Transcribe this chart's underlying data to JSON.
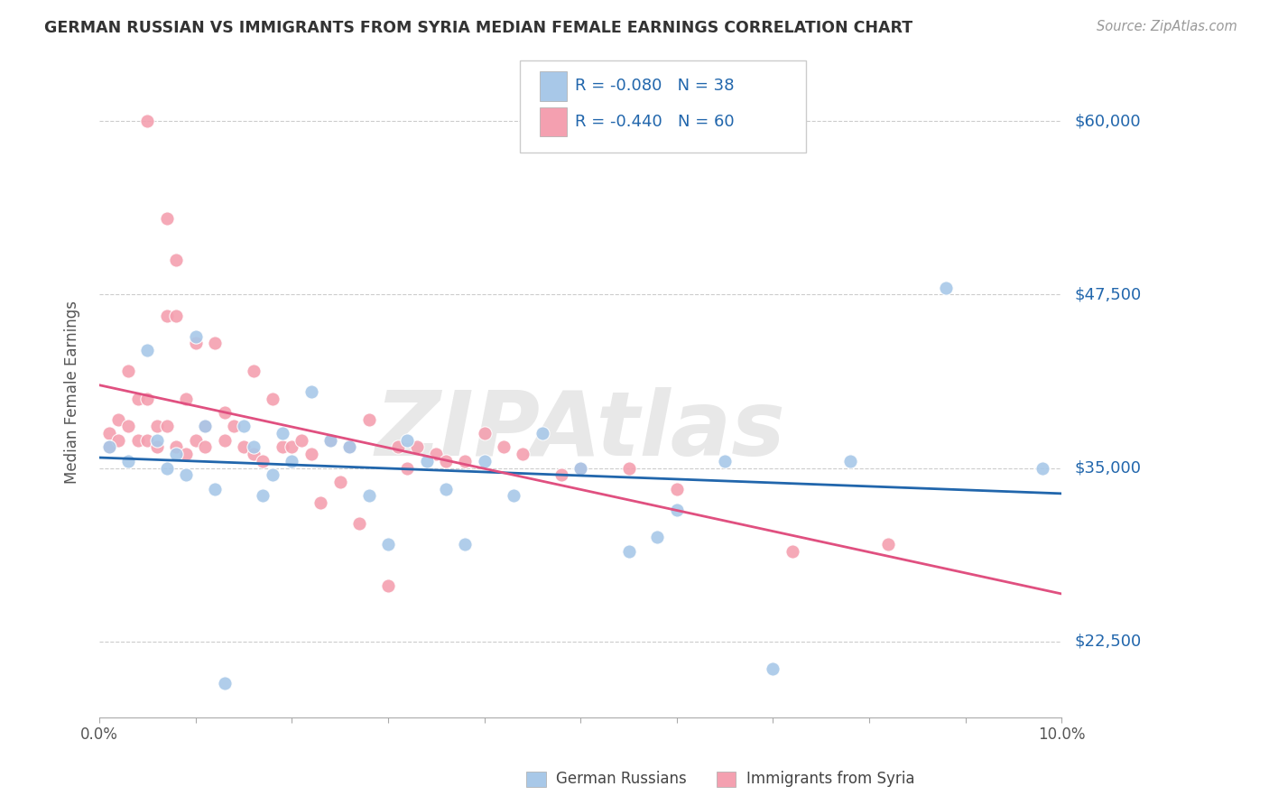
{
  "title": "GERMAN RUSSIAN VS IMMIGRANTS FROM SYRIA MEDIAN FEMALE EARNINGS CORRELATION CHART",
  "source": "Source: ZipAtlas.com",
  "ylabel": "Median Female Earnings",
  "y_ticks": [
    22500,
    35000,
    47500,
    60000
  ],
  "y_tick_labels": [
    "$22,500",
    "$35,000",
    "$47,500",
    "$60,000"
  ],
  "x_range": [
    0.0,
    0.1
  ],
  "y_range": [
    17000,
    64000
  ],
  "blue_R": "-0.080",
  "blue_N": "38",
  "pink_R": "-0.440",
  "pink_N": "60",
  "blue_color": "#a8c8e8",
  "pink_color": "#f4a0b0",
  "blue_line_color": "#2166ac",
  "pink_line_color": "#e05080",
  "watermark": "ZIPAtlas",
  "blue_scatter_x": [
    0.001,
    0.003,
    0.005,
    0.006,
    0.007,
    0.008,
    0.009,
    0.01,
    0.011,
    0.012,
    0.013,
    0.015,
    0.016,
    0.017,
    0.018,
    0.019,
    0.02,
    0.022,
    0.024,
    0.026,
    0.028,
    0.03,
    0.032,
    0.034,
    0.036,
    0.038,
    0.04,
    0.043,
    0.046,
    0.05,
    0.055,
    0.058,
    0.06,
    0.065,
    0.07,
    0.078,
    0.088,
    0.098
  ],
  "blue_scatter_y": [
    36500,
    35500,
    43500,
    37000,
    35000,
    36000,
    34500,
    44500,
    38000,
    33500,
    19500,
    38000,
    36500,
    33000,
    34500,
    37500,
    35500,
    40500,
    37000,
    36500,
    33000,
    29500,
    37000,
    35500,
    33500,
    29500,
    35500,
    33000,
    37500,
    35000,
    29000,
    30000,
    32000,
    35500,
    20500,
    35500,
    48000,
    35000
  ],
  "pink_scatter_x": [
    0.001,
    0.001,
    0.002,
    0.002,
    0.003,
    0.003,
    0.004,
    0.004,
    0.005,
    0.005,
    0.005,
    0.006,
    0.006,
    0.007,
    0.007,
    0.007,
    0.008,
    0.008,
    0.008,
    0.009,
    0.009,
    0.01,
    0.01,
    0.011,
    0.011,
    0.012,
    0.013,
    0.013,
    0.014,
    0.015,
    0.016,
    0.016,
    0.017,
    0.018,
    0.019,
    0.02,
    0.021,
    0.022,
    0.023,
    0.024,
    0.025,
    0.026,
    0.027,
    0.028,
    0.03,
    0.031,
    0.032,
    0.033,
    0.035,
    0.036,
    0.038,
    0.04,
    0.042,
    0.044,
    0.048,
    0.05,
    0.055,
    0.06,
    0.072,
    0.082
  ],
  "pink_scatter_y": [
    37500,
    36500,
    38500,
    37000,
    42000,
    38000,
    40000,
    37000,
    60000,
    40000,
    37000,
    38000,
    36500,
    53000,
    46000,
    38000,
    50000,
    46000,
    36500,
    40000,
    36000,
    37000,
    44000,
    38000,
    36500,
    44000,
    39000,
    37000,
    38000,
    36500,
    36000,
    42000,
    35500,
    40000,
    36500,
    36500,
    37000,
    36000,
    32500,
    37000,
    34000,
    36500,
    31000,
    38500,
    26500,
    36500,
    35000,
    36500,
    36000,
    35500,
    35500,
    37500,
    36500,
    36000,
    34500,
    35000,
    35000,
    33500,
    29000,
    29500
  ]
}
